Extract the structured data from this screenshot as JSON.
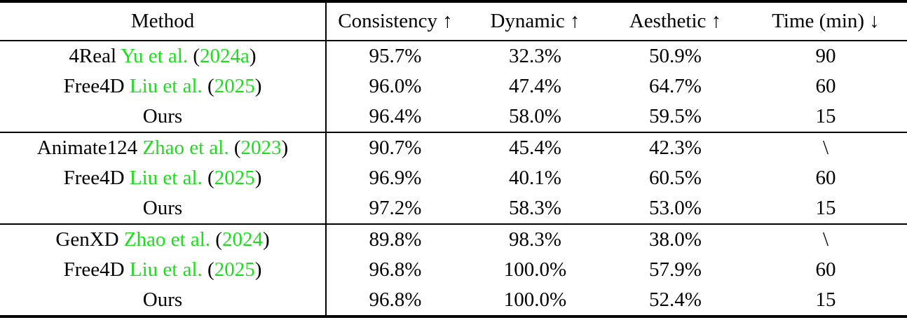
{
  "colors": {
    "citation_green": "#1BDE1B",
    "text": "#000000",
    "rule": "#000000"
  },
  "table": {
    "columns": [
      {
        "label": "Method"
      },
      {
        "label": "Consistency ↑"
      },
      {
        "label": "Dynamic ↑"
      },
      {
        "label": "Aesthetic ↑"
      },
      {
        "label": "Time (min) ↓"
      }
    ],
    "groups": [
      {
        "rows": [
          {
            "name": "4Real",
            "cite_authors": "Yu et al.",
            "paren_open": "(",
            "cite_year": "2024a",
            "paren_close": ")",
            "consistency": "95.7%",
            "dynamic": "32.3%",
            "aesthetic": "50.9%",
            "time": "90"
          },
          {
            "name": "Free4D",
            "cite_authors": "Liu et al.",
            "paren_open": "(",
            "cite_year": "2025",
            "paren_close": ")",
            "consistency": "96.0%",
            "dynamic": "47.4%",
            "aesthetic": "64.7%",
            "time": "60"
          },
          {
            "name": "Ours",
            "cite_authors": "",
            "paren_open": "",
            "cite_year": "",
            "paren_close": "",
            "consistency": "96.4%",
            "dynamic": "58.0%",
            "aesthetic": "59.5%",
            "time": "15"
          }
        ]
      },
      {
        "rows": [
          {
            "name": "Animate124",
            "cite_authors": "Zhao et al.",
            "paren_open": "(",
            "cite_year": "2023",
            "paren_close": ")",
            "consistency": "90.7%",
            "dynamic": "45.4%",
            "aesthetic": "42.3%",
            "time": "\\"
          },
          {
            "name": "Free4D",
            "cite_authors": "Liu et al.",
            "paren_open": "(",
            "cite_year": "2025",
            "paren_close": ")",
            "consistency": "96.9%",
            "dynamic": "40.1%",
            "aesthetic": "60.5%",
            "time": "60"
          },
          {
            "name": "Ours",
            "cite_authors": "",
            "paren_open": "",
            "cite_year": "",
            "paren_close": "",
            "consistency": "97.2%",
            "dynamic": "58.3%",
            "aesthetic": "53.0%",
            "time": "15"
          }
        ]
      },
      {
        "rows": [
          {
            "name": "GenXD",
            "cite_authors": "Zhao et al.",
            "paren_open": "(",
            "cite_year": "2024",
            "paren_close": ")",
            "consistency": "89.8%",
            "dynamic": "98.3%",
            "aesthetic": "38.0%",
            "time": "\\"
          },
          {
            "name": "Free4D",
            "cite_authors": "Liu et al.",
            "paren_open": "(",
            "cite_year": "2025",
            "paren_close": ")",
            "consistency": "96.8%",
            "dynamic": "100.0%",
            "aesthetic": "57.9%",
            "time": "60"
          },
          {
            "name": "Ours",
            "cite_authors": "",
            "paren_open": "",
            "cite_year": "",
            "paren_close": "",
            "consistency": "96.8%",
            "dynamic": "100.0%",
            "aesthetic": "52.4%",
            "time": "15"
          }
        ]
      }
    ]
  }
}
